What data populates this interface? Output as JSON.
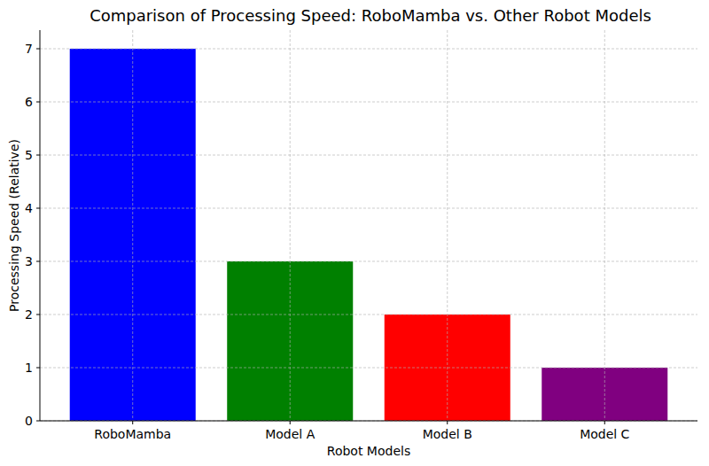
{
  "chart_data": {
    "type": "bar",
    "title": "Comparison of Processing Speed: RoboMamba vs. Other Robot Models",
    "xlabel": "Robot Models",
    "ylabel": "Processing Speed (Relative)",
    "categories": [
      "RoboMamba",
      "Model A",
      "Model B",
      "Model C"
    ],
    "values": [
      7,
      3,
      2,
      1
    ],
    "colors": [
      "#0000ff",
      "#008000",
      "#ff0000",
      "#800080"
    ],
    "ylim": [
      0,
      7.35
    ],
    "yticks": [
      0,
      1,
      2,
      3,
      4,
      5,
      6,
      7
    ],
    "grid": true
  }
}
